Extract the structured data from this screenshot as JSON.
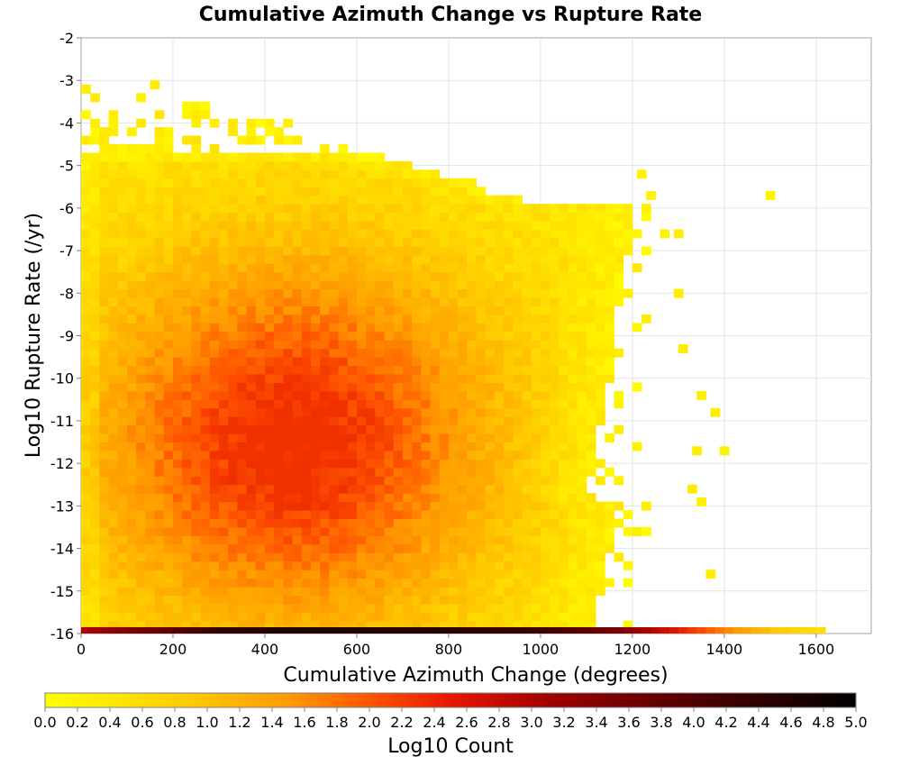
{
  "chart_data": {
    "type": "heatmap",
    "title": "Cumulative Azimuth Change vs Rupture Rate",
    "xlabel": "Cumulative Azimuth Change (degrees)",
    "ylabel": "Log10 Rupture Rate (/yr)",
    "xlim": [
      0,
      1720
    ],
    "ylim": [
      -16,
      -2
    ],
    "x_ticks": [
      "0",
      "200",
      "400",
      "600",
      "800",
      "1000",
      "1200",
      "1400",
      "1600"
    ],
    "y_ticks": [
      "-2",
      "-3",
      "-4",
      "-5",
      "-6",
      "-7",
      "-8",
      "-9",
      "-10",
      "-11",
      "-12",
      "-13",
      "-14",
      "-15",
      "-16"
    ],
    "grid": true,
    "colorbar": {
      "label": "Log10 Count",
      "range": [
        0.0,
        5.0
      ],
      "ticks": [
        "0.0",
        "0.2",
        "0.4",
        "0.6",
        "0.8",
        "1.0",
        "1.2",
        "1.4",
        "1.6",
        "1.8",
        "2.0",
        "2.2",
        "2.4",
        "2.6",
        "2.8",
        "3.0",
        "3.2",
        "3.4",
        "3.6",
        "3.8",
        "4.0",
        "4.2",
        "4.4",
        "4.6",
        "4.8",
        "5.0"
      ],
      "colors": [
        "#ffff00",
        "#ffd000",
        "#ff9a00",
        "#ff5500",
        "#e81800",
        "#a00000",
        "#500000",
        "#000000"
      ]
    },
    "bin_width_x": 20,
    "bin_height_y": 0.2,
    "bottom_row": {
      "y": -16,
      "x_start": 0,
      "x_end": 1620,
      "log_count_profile": [
        [
          0,
          3.0
        ],
        [
          300,
          4.4
        ],
        [
          500,
          4.6
        ],
        [
          800,
          4.5
        ],
        [
          1000,
          4.2
        ],
        [
          1100,
          3.8
        ],
        [
          1200,
          3.2
        ],
        [
          1300,
          2.4
        ],
        [
          1400,
          1.6
        ],
        [
          1500,
          0.9
        ],
        [
          1620,
          0.5
        ]
      ]
    },
    "density_peak": {
      "x": 450,
      "y": -11.5,
      "max_log_count": 2.05
    },
    "outlier_cells": [
      {
        "x": 1490,
        "y": -5.7,
        "v": 0.2
      },
      {
        "x": 1290,
        "y": -6.6,
        "v": 0.3
      },
      {
        "x": 1340,
        "y": -10.4,
        "v": 0.3
      },
      {
        "x": 1370,
        "y": -10.8,
        "v": 0.3
      },
      {
        "x": 1390,
        "y": -11.7,
        "v": 0.2
      },
      {
        "x": 1330,
        "y": -11.7,
        "v": 0.3
      },
      {
        "x": 1320,
        "y": -12.6,
        "v": 0.3
      },
      {
        "x": 1340,
        "y": -12.9,
        "v": 0.2
      },
      {
        "x": 1360,
        "y": -14.6,
        "v": 0.3
      },
      {
        "x": 1290,
        "y": -8.0,
        "v": 0.3
      },
      {
        "x": 1300,
        "y": -9.3,
        "v": 0.3
      },
      {
        "x": 1210,
        "y": -5.2,
        "v": 0.2
      },
      {
        "x": 1230,
        "y": -5.7,
        "v": 0.2
      },
      {
        "x": 150,
        "y": -3.1,
        "v": 0.3
      }
    ]
  }
}
